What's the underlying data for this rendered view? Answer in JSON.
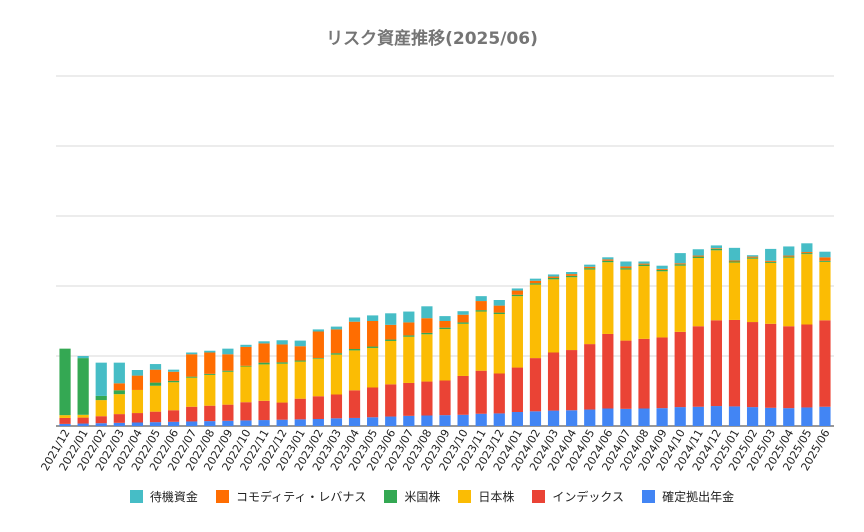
{
  "chart_data": {
    "type": "bar",
    "stacked": true,
    "title": "リスク資産推移(2025/06)",
    "xlabel": "",
    "ylabel": "",
    "y_tick_labels_visible": false,
    "grid": true,
    "legend_position": "bottom",
    "categories": [
      "2021/12",
      "2022/01",
      "2022/02",
      "2022/03",
      "2022/04",
      "2022/05",
      "2022/06",
      "2022/07",
      "2022/08",
      "2022/09",
      "2022/10",
      "2022/11",
      "2022/12",
      "2023/01",
      "2023/02",
      "2023/03",
      "2023/04",
      "2023/05",
      "2023/06",
      "2023/07",
      "2023/08",
      "2023/09",
      "2023/10",
      "2023/11",
      "2023/12",
      "2024/01",
      "2024/02",
      "2024/03",
      "2024/04",
      "2024/05",
      "2024/06",
      "2024/07",
      "2024/08",
      "2024/09",
      "2024/10",
      "2024/11",
      "2024/12",
      "2025/01",
      "2025/02",
      "2025/03",
      "2025/04",
      "2025/05",
      "2025/06"
    ],
    "series": [
      {
        "name": "確定拠出年金",
        "color": "#4285f4",
        "values": [
          6,
          7,
          8,
          9,
          10,
          11,
          12,
          13,
          14,
          15,
          16,
          17,
          18,
          19,
          20,
          22,
          23,
          25,
          27,
          29,
          30,
          31,
          32,
          35,
          36,
          40,
          42,
          44,
          45,
          47,
          50,
          49,
          50,
          51,
          54,
          55,
          57,
          56,
          54,
          52,
          51,
          53,
          55
        ]
      },
      {
        "name": "インデックス",
        "color": "#ea4335",
        "values": [
          17,
          17,
          20,
          25,
          27,
          30,
          33,
          42,
          44,
          46,
          52,
          55,
          49,
          59,
          65,
          68,
          79,
          85,
          92,
          94,
          97,
          99,
          111,
          123,
          114,
          127,
          152,
          166,
          172,
          187,
          213,
          195,
          199,
          202,
          215,
          230,
          245,
          247,
          243,
          240,
          234,
          237,
          247
        ]
      },
      {
        "name": "日本株",
        "color": "#fbbc04",
        "values": [
          8,
          8,
          46,
          57,
          66,
          74,
          80,
          83,
          88,
          94,
          102,
          104,
          111,
          106,
          107,
          114,
          114,
          113,
          124,
          132,
          135,
          147,
          149,
          169,
          170,
          204,
          210,
          209,
          208,
          213,
          205,
          203,
          208,
          189,
          189,
          195,
          200,
          164,
          181,
          174,
          196,
          201,
          167
        ]
      },
      {
        "name": "米国株",
        "color": "#34a853",
        "values": [
          190,
          162,
          12,
          11,
          0,
          9,
          4,
          3,
          3,
          3,
          2,
          5,
          4,
          3,
          2,
          4,
          4,
          4,
          4,
          4,
          4,
          4,
          4,
          4,
          4,
          4,
          4,
          4,
          4,
          4,
          4,
          4,
          4,
          4,
          4,
          4,
          4,
          3,
          3,
          3,
          3,
          3,
          3
        ]
      },
      {
        "name": "コモディティ・レバナス",
        "color": "#ff6d01",
        "values": [
          0,
          0,
          0,
          20,
          41,
          37,
          26,
          64,
          61,
          47,
          54,
          55,
          51,
          41,
          76,
          68,
          78,
          73,
          42,
          37,
          42,
          19,
          22,
          26,
          20,
          12,
          7,
          4,
          5,
          4,
          4,
          5,
          3,
          3,
          3,
          3,
          2,
          3,
          3,
          3,
          3,
          3,
          10
        ]
      },
      {
        "name": "待機資金",
        "color": "#46bdc6",
        "values": [
          0,
          6,
          95,
          59,
          16,
          16,
          6,
          5,
          5,
          16,
          6,
          6,
          12,
          16,
          6,
          8,
          12,
          16,
          33,
          31,
          34,
          14,
          10,
          14,
          16,
          6,
          6,
          6,
          6,
          6,
          6,
          14,
          6,
          9,
          29,
          18,
          8,
          36,
          4,
          34,
          26,
          25,
          16
        ]
      }
    ],
    "ylim": [
      0,
      1000
    ],
    "gridlines": [
      0,
      200,
      400,
      600,
      800,
      1000
    ]
  }
}
